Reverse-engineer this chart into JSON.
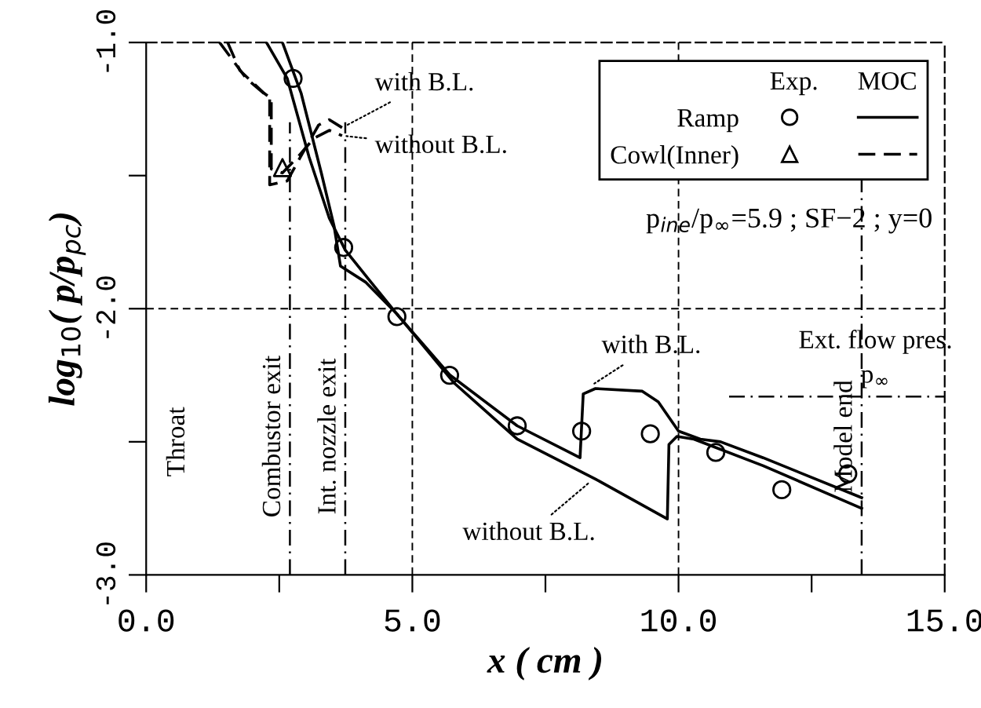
{
  "chart_data": {
    "type": "line",
    "xlabel": "x ( cm )",
    "ylabel": "log$_{10}$( p/p$_{pc}$)",
    "legend_title": "Exp.      MOC",
    "xlim": [
      0,
      15
    ],
    "ylim": [
      -3,
      -1
    ],
    "xticks": [
      {
        "value": 0,
        "label": "0.0"
      },
      {
        "value": 2.5,
        "label": null
      },
      {
        "value": 5,
        "label": "5.0"
      },
      {
        "value": 7.5,
        "label": null
      },
      {
        "value": 10,
        "label": "10.0"
      },
      {
        "value": 12.5,
        "label": null
      },
      {
        "value": 15,
        "label": "15.0"
      }
    ],
    "yticks": [
      {
        "value": -3,
        "label": "-3.0"
      },
      {
        "value": -2.5,
        "label": null
      },
      {
        "value": -2,
        "label": "-2.0"
      },
      {
        "value": -1.5,
        "label": null
      },
      {
        "value": -1,
        "label": "-1.0"
      }
    ],
    "grid": true,
    "legend": "top right",
    "series": [
      {
        "name": "Ramp",
        "type": "scatter",
        "marker": "circle",
        "color": "#000000",
        "x": [
          2.76,
          3.71,
          4.71,
          5.7,
          6.97,
          8.18,
          9.47,
          10.7,
          11.94,
          13.18
        ],
        "values": [
          -1.135,
          -1.77,
          -2.03,
          -2.25,
          -2.44,
          -2.46,
          -2.47,
          -2.54,
          -2.68,
          -2.62
        ]
      },
      {
        "line_style": "solid",
        "color": "#000000",
        "x": [
          2.26,
          2.65,
          3.06,
          3.44,
          3.74,
          4.18,
          4.71,
          5.71,
          6.97,
          8.15,
          8.21,
          8.44,
          9.32,
          9.62,
          10.0,
          10.41,
          10.79,
          11.59,
          13.44
        ],
        "values": [
          -1.0,
          -1.135,
          -1.43,
          -1.66,
          -1.78,
          -1.89,
          -2.02,
          -2.25,
          -2.44,
          -2.56,
          -2.32,
          -2.3,
          -2.31,
          -2.35,
          -2.46,
          -2.49,
          -2.5,
          -2.56,
          -2.71
        ]
      },
      {
        "line_style": "solid",
        "color": "#000000",
        "x": [
          2.56,
          2.91,
          3.29,
          3.53,
          3.65,
          4.12,
          4.71,
          5.79,
          6.97,
          8.44,
          9.79,
          9.82,
          9.97,
          10.29,
          11.59,
          13.44
        ],
        "values": [
          -1.0,
          -1.19,
          -1.49,
          -1.69,
          -1.84,
          -1.9,
          -2.02,
          -2.28,
          -2.49,
          -2.64,
          -2.79,
          -2.51,
          -2.48,
          -2.49,
          -2.59,
          -2.75
        ]
      },
      {
        "name": "Cowl(Inner)",
        "type": "scatter",
        "marker": "triangle",
        "color": "#000000",
        "x": [
          2.56
        ],
        "values": [
          -1.47
        ]
      },
      {
        "line_style": "dashed",
        "color": "#000000",
        "x": [
          1.38,
          1.88,
          2.32,
          2.32,
          2.65,
          2.94,
          3.24,
          3.44,
          3.68
        ],
        "values": [
          -1.0,
          -1.135,
          -1.21,
          -1.535,
          -1.52,
          -1.415,
          -1.31,
          -1.29,
          -1.32
        ]
      },
      {
        "line_style": "dashed",
        "color": "#000000",
        "x": [
          1.53,
          1.76,
          2.21,
          2.35,
          2.35,
          2.56,
          2.85,
          3.15,
          3.44,
          3.68
        ],
        "values": [
          -1.0,
          -1.105,
          -1.19,
          -1.21,
          -1.475,
          -1.49,
          -1.43,
          -1.36,
          -1.33,
          -1.35
        ]
      }
    ],
    "ref_lines": [
      {
        "axis": "x",
        "value": 2.7,
        "label": "Combustor exit",
        "line_style": "dashdot"
      },
      {
        "axis": "x",
        "value": 3.74,
        "label": "Int. nozzle exit",
        "line_style": "dashdot"
      },
      {
        "axis": "x",
        "value": 13.44,
        "label": "Model end",
        "line_style": "dashdot"
      },
      {
        "axis": "y",
        "value": -2.33,
        "label": "Ext. flow pres.\np$_{∞}$",
        "line_style": "dashdot"
      }
    ],
    "annotations": [
      {
        "text": "with B.L.",
        "x": 3.68,
        "y": -1.32
      },
      {
        "text": "without B.L.",
        "x": 3.68,
        "y": -1.35
      },
      {
        "text": "with B.L.",
        "x": 8.35,
        "y": -2.29
      },
      {
        "text": "without B.L.",
        "x": 8.4,
        "y": -2.64
      },
      "Throat",
      "p$_{ine}$/p$_{∞}$=5.9 ; SF−2 ; y=0"
    ]
  }
}
